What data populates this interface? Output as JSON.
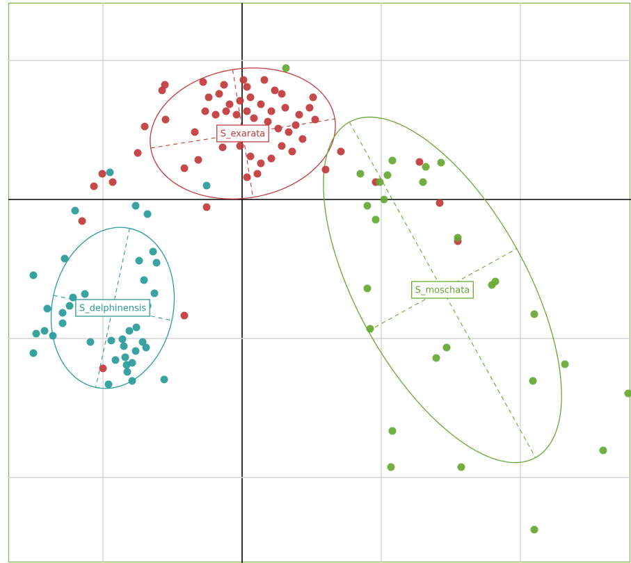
{
  "chart_data": {
    "type": "scatter",
    "xlim": [
      -1.68,
      2.795
    ],
    "ylim": [
      -2.615,
      1.415
    ],
    "xticks": [
      -1,
      0,
      1,
      2
    ],
    "yticks": [
      -2,
      -1,
      0,
      1
    ],
    "grid": true,
    "series": [
      {
        "name": "S_exarata",
        "color": "#c0393b",
        "x": [
          -0.555,
          -0.575,
          -0.28,
          -0.13,
          0.01,
          0.035,
          0.16,
          0.235,
          0.285,
          -0.24,
          -0.165,
          -0.09,
          -0.015,
          0.06,
          0.135,
          0.21,
          0.31,
          0.41,
          0.485,
          -0.265,
          -0.19,
          -0.115,
          -0.04,
          0.035,
          0.085,
          0.185,
          0.26,
          0.335,
          0.385,
          0.435,
          -0.7,
          -0.55,
          -0.75,
          -0.415,
          -0.315,
          -0.14,
          -0.015,
          0.06,
          0.135,
          0.21,
          0.285,
          0.36,
          0.035,
          0.11,
          0.6,
          0.71,
          -1.005,
          -1.065,
          -0.93,
          -1.15,
          -0.255,
          -0.415,
          -1.0,
          1.275,
          1.42,
          1.55,
          0.96,
          0.525,
          -0.34,
          0.51
        ],
        "y": [
          0.825,
          0.785,
          0.845,
          0.825,
          0.86,
          0.81,
          0.86,
          0.785,
          0.76,
          0.735,
          0.76,
          0.685,
          0.71,
          0.735,
          0.685,
          0.635,
          0.66,
          0.61,
          0.66,
          0.635,
          0.61,
          0.635,
          0.61,
          0.635,
          0.585,
          0.56,
          0.51,
          0.485,
          0.535,
          0.435,
          0.525,
          0.575,
          0.335,
          0.225,
          0.285,
          0.375,
          0.385,
          0.31,
          0.26,
          0.295,
          0.385,
          0.345,
          0.16,
          0.185,
          0.215,
          0.345,
          0.185,
          0.095,
          0.125,
          -0.155,
          -0.055,
          -0.835,
          -1.215,
          0.27,
          -0.025,
          -0.3,
          0.125,
          0.575,
          0.485,
          0.735
        ],
        "ellipse": {
          "cx": 0.005,
          "cy": 0.475,
          "rx": 0.67,
          "ry": 0.465,
          "angle": 9
        }
      },
      {
        "name": "S_delphinensis",
        "color": "#2a9a9a",
        "x": [
          -0.95,
          -1.2,
          -0.765,
          -0.68,
          -0.255,
          -1.275,
          -1.5,
          -0.64,
          -0.74,
          -0.615,
          -0.705,
          -0.63,
          -0.68,
          -1.215,
          -1.13,
          -1.4,
          -1.29,
          -1.24,
          -1.48,
          -1.42,
          -1.36,
          -1.5,
          -1.29,
          -0.76,
          -0.81,
          -0.86,
          -0.715,
          -1.09,
          -0.94,
          -0.85,
          -0.69,
          -0.91,
          -0.84,
          -0.765,
          -0.83,
          -0.79,
          -0.825,
          -0.96,
          -0.79,
          -0.56
        ],
        "y": [
          0.195,
          -0.08,
          -0.045,
          -0.105,
          0.1,
          -0.425,
          -0.545,
          -0.375,
          -0.44,
          -0.455,
          -0.58,
          -0.675,
          -0.765,
          -0.705,
          -0.68,
          -0.785,
          -0.815,
          -0.765,
          -0.965,
          -0.945,
          -0.98,
          -1.105,
          -0.89,
          -0.92,
          -0.945,
          -1.005,
          -1.025,
          -1.025,
          -1.015,
          -1.055,
          -1.065,
          -1.155,
          -1.135,
          -1.09,
          -1.19,
          -1.175,
          -1.24,
          -1.33,
          -1.305,
          -1.295
        ],
        "ellipse": {
          "cx": -0.93,
          "cy": -0.78,
          "rx": 0.435,
          "ry": 0.585,
          "angle": -12
        }
      },
      {
        "name": "S_moschata",
        "color": "#66a832",
        "x": [
          0.315,
          0.85,
          0.99,
          1.045,
          1.08,
          1.32,
          1.43,
          1.3,
          0.9,
          1.02,
          0.96,
          1.55,
          1.82,
          1.795,
          0.9,
          0.92,
          2.1,
          1.47,
          1.395,
          2.09,
          2.32,
          2.775,
          1.08,
          1.07,
          1.575,
          2.595,
          2.1
        ],
        "y": [
          0.945,
          0.185,
          0.125,
          0.175,
          0.28,
          0.235,
          0.265,
          0.125,
          -0.045,
          0.0,
          -0.145,
          -0.275,
          -0.59,
          -0.615,
          -0.64,
          -0.93,
          -0.825,
          -1.065,
          -1.14,
          -1.305,
          -1.185,
          -1.395,
          -1.665,
          -1.925,
          -1.925,
          -1.805,
          -2.375
        ],
        "ellipse": {
          "cx": 1.44,
          "cy": -0.65,
          "rx": 0.61,
          "ry": 1.38,
          "angle": 29
        }
      }
    ]
  }
}
